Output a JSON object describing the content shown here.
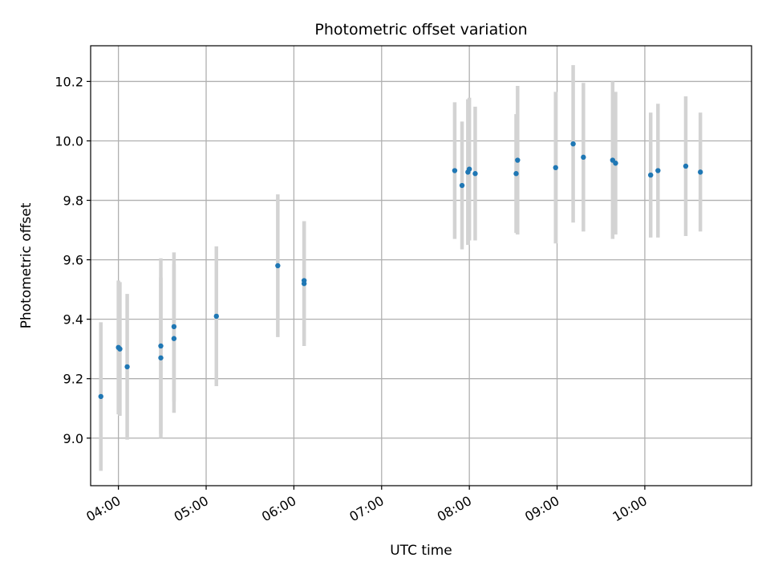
{
  "chart_data": {
    "type": "scatter",
    "title": "Photometric offset variation",
    "xlabel": "UTC time",
    "ylabel": "Photometric offset",
    "xlim": [
      "03:41",
      "11:13"
    ],
    "ylim": [
      8.84,
      10.32
    ],
    "x_ticks": [
      "04:00",
      "05:00",
      "06:00",
      "07:00",
      "08:00",
      "09:00",
      "10:00"
    ],
    "y_ticks": [
      9.0,
      9.2,
      9.4,
      9.6,
      9.8,
      10.0,
      10.2
    ],
    "grid": true,
    "marker_color": "#1f77b4",
    "errorbar_color": "#d3d3d3",
    "points": [
      {
        "x": "03:48",
        "y": 9.14,
        "err": 0.25
      },
      {
        "x": "04:00",
        "y": 9.305,
        "err": 0.225
      },
      {
        "x": "04:01",
        "y": 9.3,
        "err": 0.225
      },
      {
        "x": "04:06",
        "y": 9.24,
        "err": 0.245
      },
      {
        "x": "04:29",
        "y": 9.27,
        "err": 0.27
      },
      {
        "x": "04:29",
        "y": 9.31,
        "err": 0.295
      },
      {
        "x": "04:38",
        "y": 9.375,
        "err": 0.25
      },
      {
        "x": "04:38",
        "y": 9.335,
        "err": 0.25
      },
      {
        "x": "05:07",
        "y": 9.41,
        "err": 0.235
      },
      {
        "x": "05:49",
        "y": 9.58,
        "err": 0.24
      },
      {
        "x": "06:07",
        "y": 9.53,
        "err": 0.2
      },
      {
        "x": "06:07",
        "y": 9.52,
        "err": 0.21
      },
      {
        "x": "07:50",
        "y": 9.9,
        "err": 0.23
      },
      {
        "x": "07:55",
        "y": 9.85,
        "err": 0.215
      },
      {
        "x": "07:59",
        "y": 9.895,
        "err": 0.245
      },
      {
        "x": "08:00",
        "y": 9.905,
        "err": 0.24
      },
      {
        "x": "08:04",
        "y": 9.89,
        "err": 0.225
      },
      {
        "x": "08:32",
        "y": 9.89,
        "err": 0.2
      },
      {
        "x": "08:33",
        "y": 9.935,
        "err": 0.25
      },
      {
        "x": "08:59",
        "y": 9.91,
        "err": 0.255
      },
      {
        "x": "09:11",
        "y": 9.99,
        "err": 0.265
      },
      {
        "x": "09:18",
        "y": 9.945,
        "err": 0.25
      },
      {
        "x": "09:38",
        "y": 9.935,
        "err": 0.265
      },
      {
        "x": "09:40",
        "y": 9.925,
        "err": 0.24
      },
      {
        "x": "10:04",
        "y": 9.885,
        "err": 0.21
      },
      {
        "x": "10:09",
        "y": 9.9,
        "err": 0.225
      },
      {
        "x": "10:28",
        "y": 9.915,
        "err": 0.235
      },
      {
        "x": "10:38",
        "y": 9.895,
        "err": 0.2
      }
    ]
  }
}
